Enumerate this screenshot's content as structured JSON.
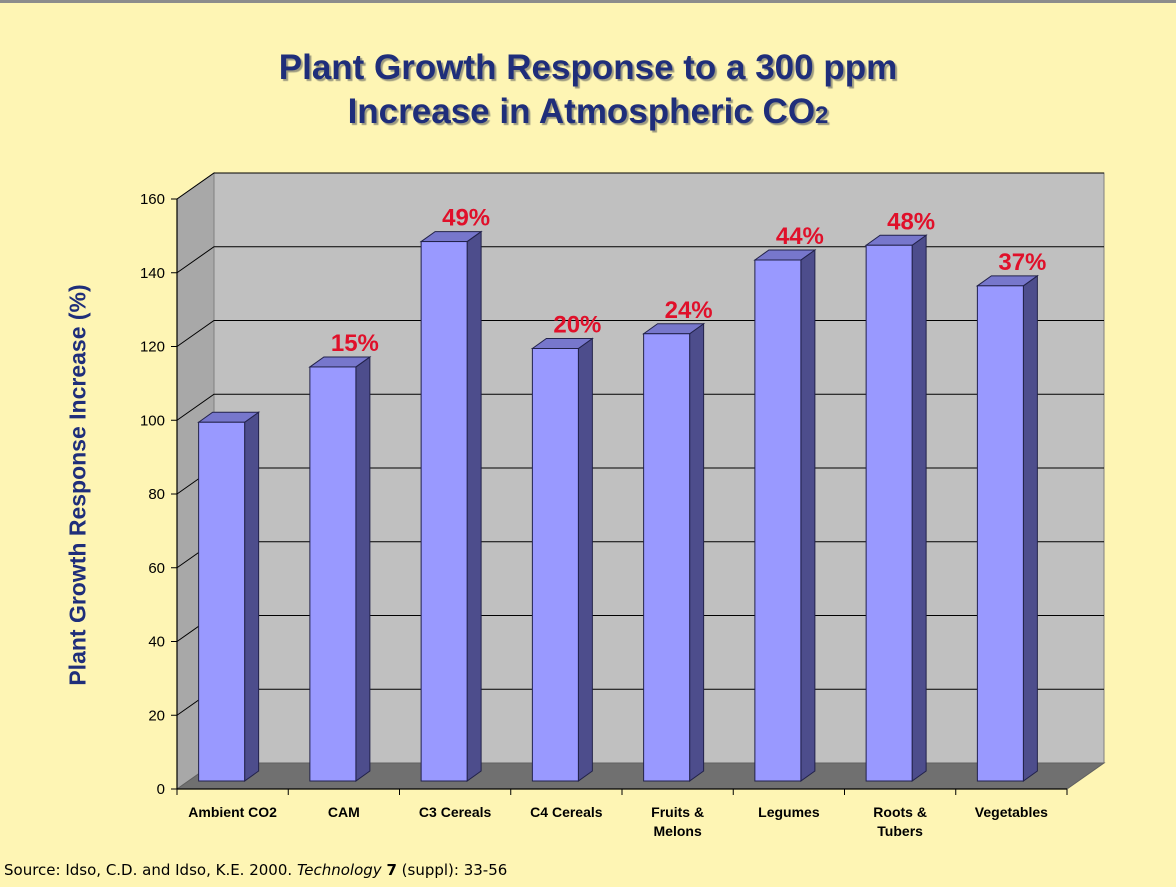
{
  "title": {
    "line1": "Plant Growth Response to a 300 ppm",
    "line2_prefix": "Increase in Atmospheric CO",
    "line2_subscript": "2"
  },
  "chart_data": {
    "type": "bar",
    "title": "Plant Growth Response to a 300 ppm Increase in Atmospheric CO2",
    "ylabel": "Plant Growth Response Increase (%)",
    "xlabel": "",
    "ylim": [
      0,
      160
    ],
    "yticks": [
      "0",
      "20",
      "40",
      "60",
      "80",
      "100",
      "120",
      "140",
      "160"
    ],
    "grid": true,
    "categories": [
      [
        "Ambient CO2"
      ],
      [
        "CAM"
      ],
      [
        "C3 Cereals"
      ],
      [
        "C4 Cereals"
      ],
      [
        "Fruits &",
        "Melons"
      ],
      [
        "Legumes"
      ],
      [
        "Roots &",
        "Tubers"
      ],
      [
        "Vegetables"
      ]
    ],
    "values": [
      100,
      115,
      149,
      120,
      124,
      144,
      148,
      137
    ],
    "data_labels": [
      "",
      "15%",
      "49%",
      "20%",
      "24%",
      "44%",
      "48%",
      "37%"
    ]
  },
  "colors": {
    "background": "#FEF5B4",
    "title": "#1F2E7A",
    "bar_front": "#9999FF",
    "bar_side": "#4D4D8C",
    "bar_top": "#7777CC",
    "wall": "#C0C0C0",
    "floor": "#707070",
    "data_label": "#E0102A"
  },
  "source": {
    "prefix": "Source: Idso, C.D. and Idso, K.E. 2000. ",
    "journal": "Technology",
    "space": " ",
    "volume": "7",
    "suffix": " (suppl): 33-56"
  }
}
